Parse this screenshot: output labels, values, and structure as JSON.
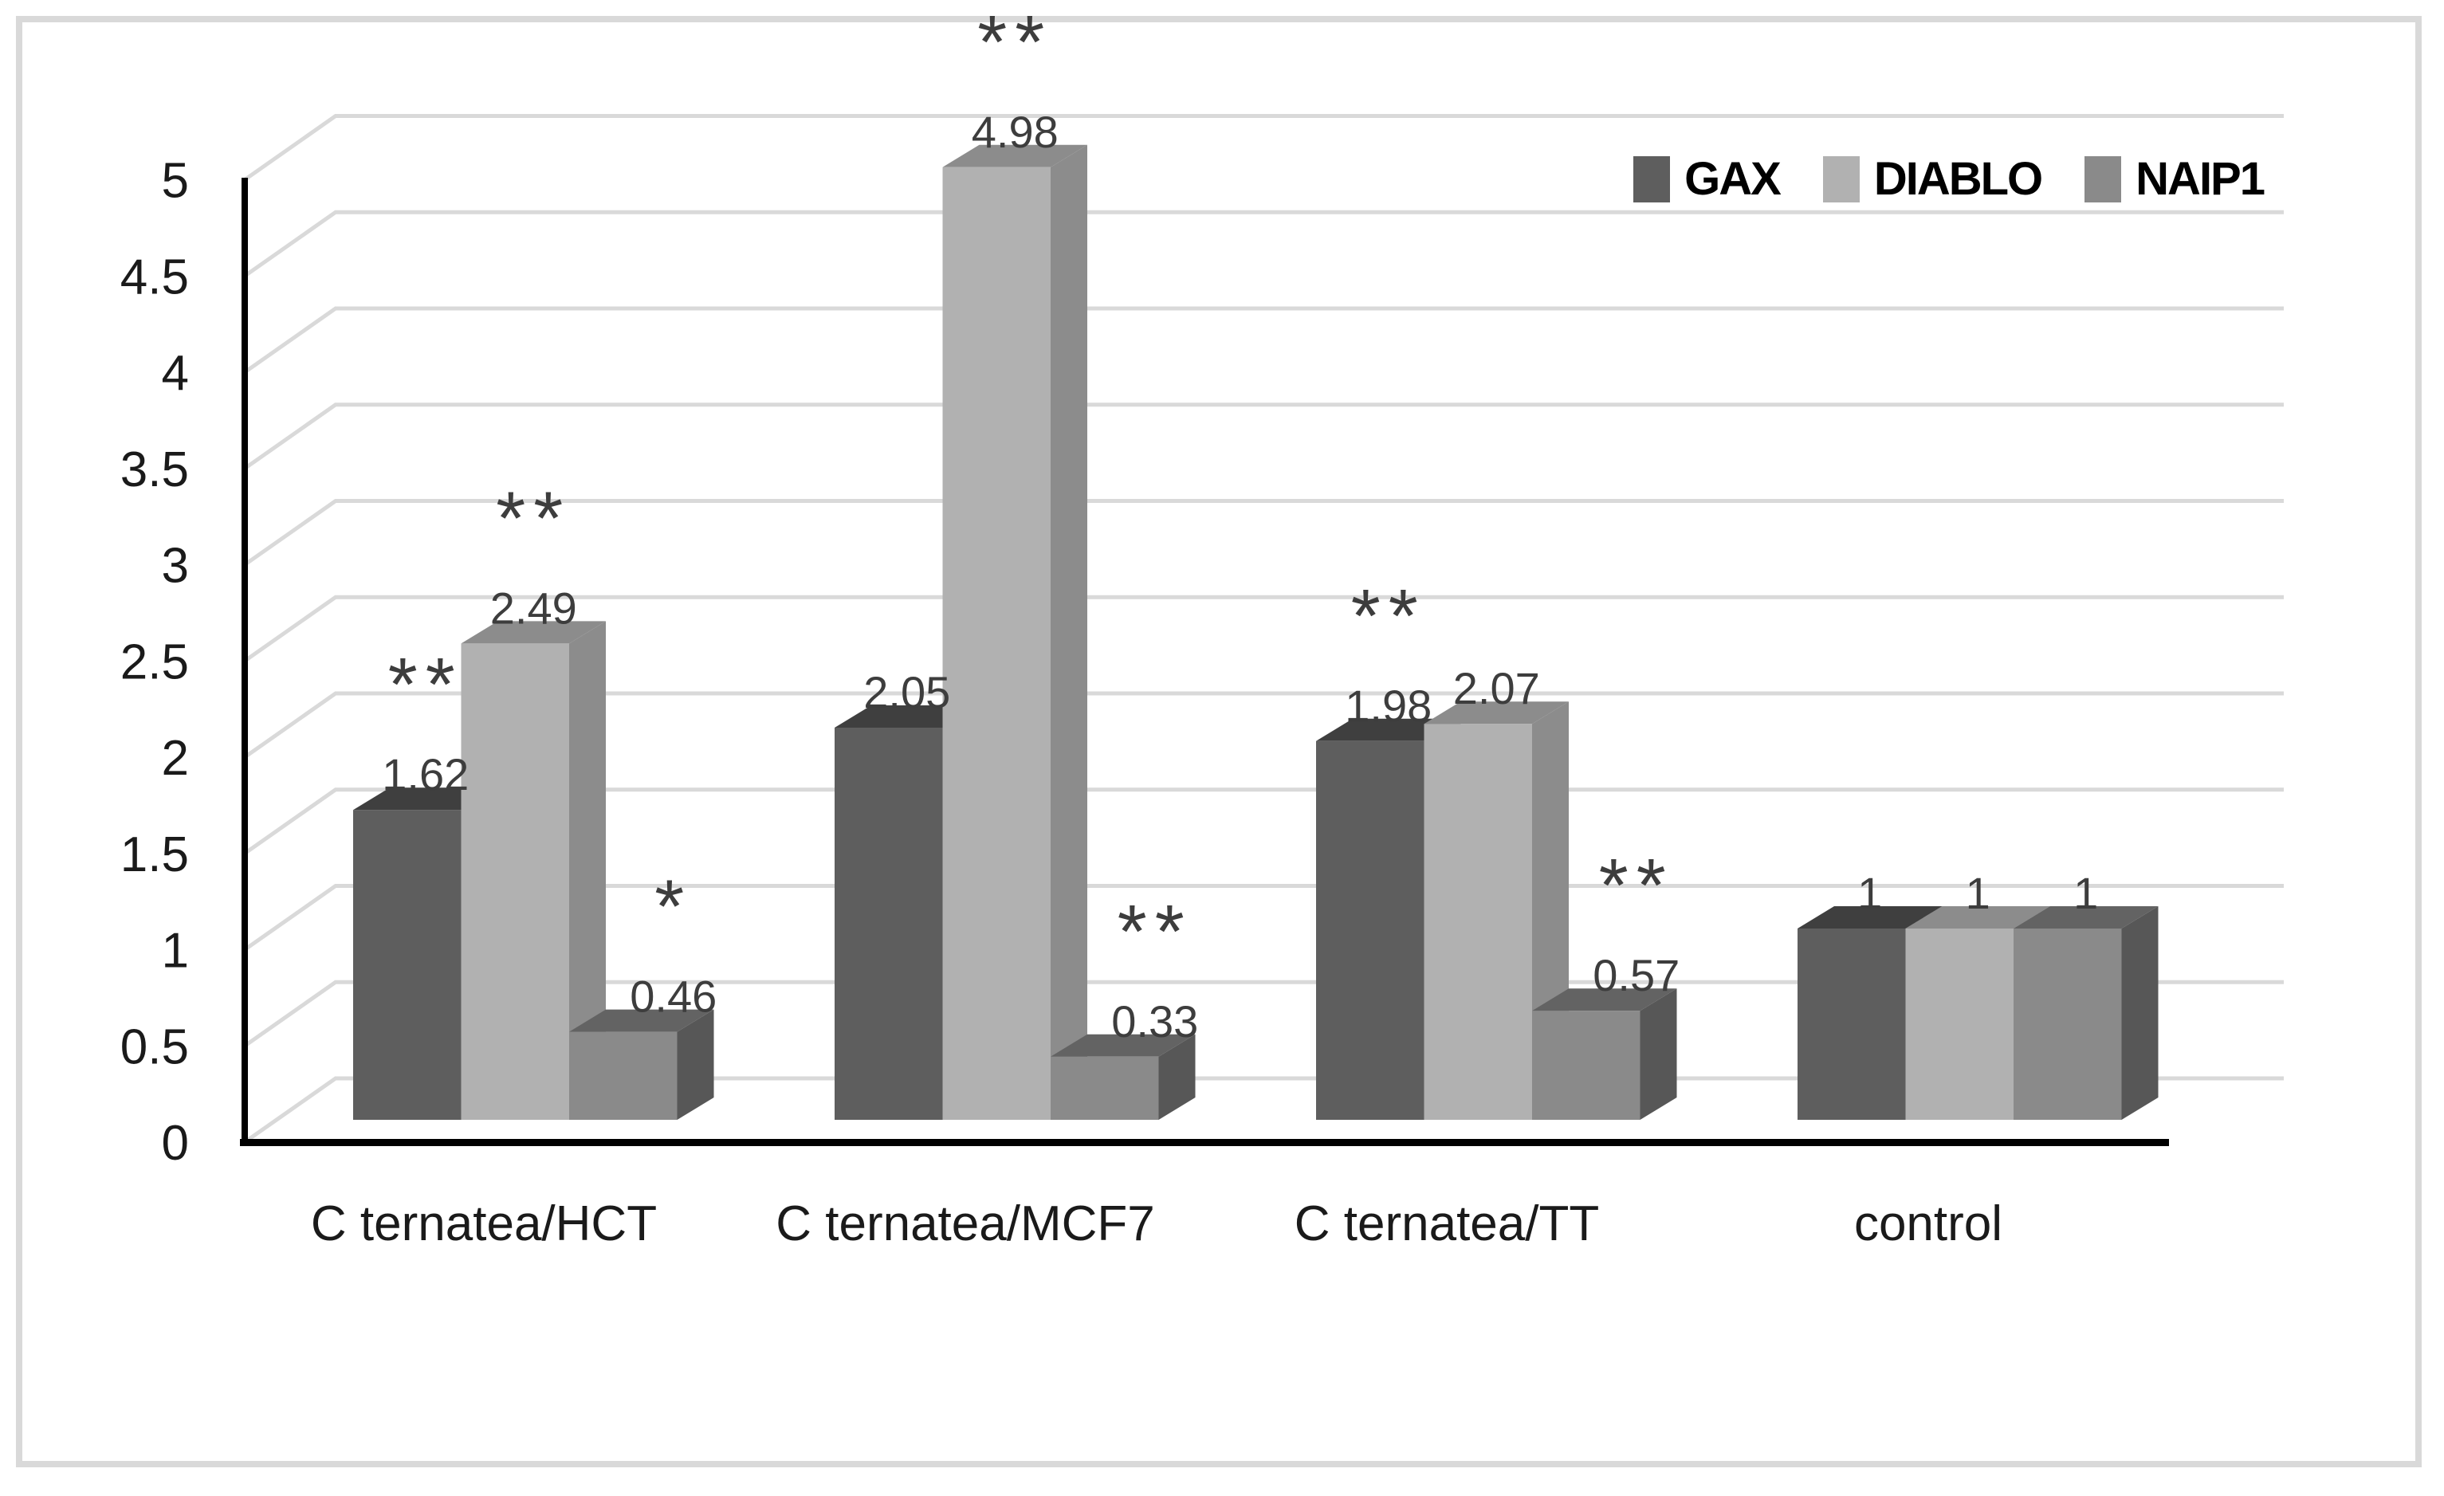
{
  "figure": {
    "background": "#ffffff",
    "border_color": "#d9d9d9"
  },
  "legend": {
    "position": "top-right",
    "items": [
      {
        "label": "GAX",
        "color": "#5e5e5e"
      },
      {
        "label": "DIABLO",
        "color": "#b1b1b1"
      },
      {
        "label": "NAIP1",
        "color": "#8a8a8a"
      }
    ]
  },
  "axis": {
    "y_ticks": [
      "0",
      "0.5",
      "1",
      "1.5",
      "2",
      "2.5",
      "3",
      "3.5",
      "4",
      "4.5",
      "5"
    ],
    "y_tick_values": [
      0,
      0.5,
      1,
      1.5,
      2,
      2.5,
      3,
      3.5,
      4,
      4.5,
      5
    ],
    "axis_color": "#000000",
    "gridline_color": "#d9d9d9",
    "tick_label_color": "#1a1a1a"
  },
  "chart_data": {
    "type": "bar",
    "projection": "3d-column",
    "title": "",
    "xlabel": "",
    "ylabel": "",
    "ylim": [
      0,
      5
    ],
    "ytick_step": 0.5,
    "grid": true,
    "legend_position": "top-right",
    "categories": [
      "C ternatea/HCT",
      "C ternatea/MCF7",
      "C ternatea/TT",
      "control"
    ],
    "series": [
      {
        "name": "GAX",
        "front_color": "#5e5e5e",
        "top_color": "#3f3f3f",
        "side_color": "#4a4a4a",
        "values": [
          1.62,
          2.05,
          1.98,
          1
        ],
        "labels": [
          "1.62",
          "2.05",
          "1.98",
          "1"
        ],
        "annotations": [
          "**",
          "",
          "**",
          ""
        ]
      },
      {
        "name": "DIABLO",
        "front_color": "#b1b1b1",
        "top_color": "#8c8c8c",
        "side_color": "#8c8c8c",
        "values": [
          2.49,
          4.98,
          2.07,
          1
        ],
        "labels": [
          "2.49",
          "4.98",
          "2.07",
          "1"
        ],
        "annotations": [
          "**",
          "**",
          "",
          ""
        ]
      },
      {
        "name": "NAIP1",
        "front_color": "#8a8a8a",
        "top_color": "#636363",
        "side_color": "#575757",
        "values": [
          0.46,
          0.33,
          0.57,
          1
        ],
        "labels": [
          "0.46",
          "0.33",
          "0.57",
          "1"
        ],
        "annotations": [
          "*",
          "**",
          "**",
          ""
        ]
      }
    ],
    "data_label_color": "#3d3d3d",
    "annotation_color": "#3d3d3d",
    "category_label_color": "#1a1a1a"
  }
}
